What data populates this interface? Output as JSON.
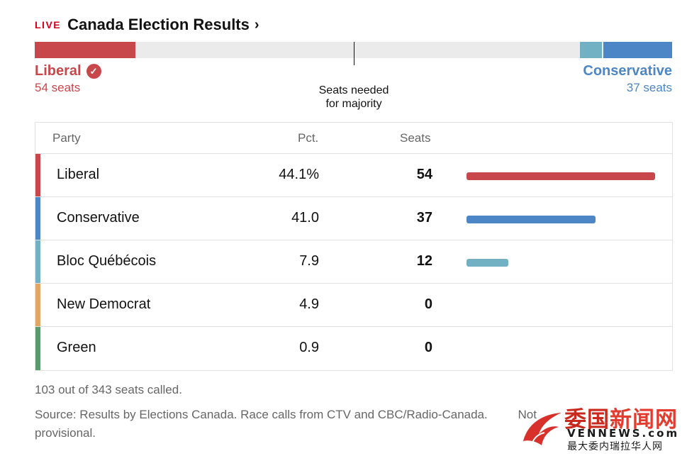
{
  "header": {
    "live_label": "LIVE",
    "title": "Canada Election Results",
    "chevron": "›",
    "live_color": "#d0021b"
  },
  "seat_bar": {
    "total_seats": 343,
    "majority_label_line1": "Seats needed",
    "majority_label_line2": "for majority",
    "background_color": "#ebebeb"
  },
  "leaders": {
    "left": {
      "name": "Liberal",
      "seats_text": "54 seats",
      "color": "#c8474b",
      "check_icon": "checkmark-circle-icon",
      "check_glyph": "✓"
    },
    "right": {
      "name": "Conservative",
      "seats_text": "37 seats",
      "color": "#4c86c6"
    }
  },
  "table": {
    "headers": {
      "party": "Party",
      "pct": "Pct.",
      "seats": "Seats"
    },
    "rows": [
      {
        "party": "Liberal",
        "pct": "44.1%",
        "seats": "54",
        "seats_value": 54,
        "color": "#c8474b"
      },
      {
        "party": "Conservative",
        "pct": "41.0",
        "seats": "37",
        "seats_value": 37,
        "color": "#4c86c6"
      },
      {
        "party": "Bloc Québécois",
        "pct": "7.9",
        "seats": "12",
        "seats_value": 12,
        "color": "#72b0c4"
      },
      {
        "party": "New Democrat",
        "pct": "4.9",
        "seats": "0",
        "seats_value": 0,
        "color": "#e0a664"
      },
      {
        "party": "Green",
        "pct": "0.9",
        "seats": "0",
        "seats_value": 0,
        "color": "#5b9a6d"
      }
    ]
  },
  "notes": {
    "called": "103 out of 343 seats called.",
    "source": "Source: Results by Elections Canada. Race calls from CTV and CBC/Radio-Canada.",
    "provisional_fragment": "Not",
    "provisional_end": "provisional."
  },
  "watermark": {
    "chinese_part1": "委国",
    "chinese_part2": "新闻网",
    "english": "VENNEWS.com",
    "subtitle": "最大委内瑞拉华人网",
    "logo_icon": "phoenix-logo-icon"
  }
}
